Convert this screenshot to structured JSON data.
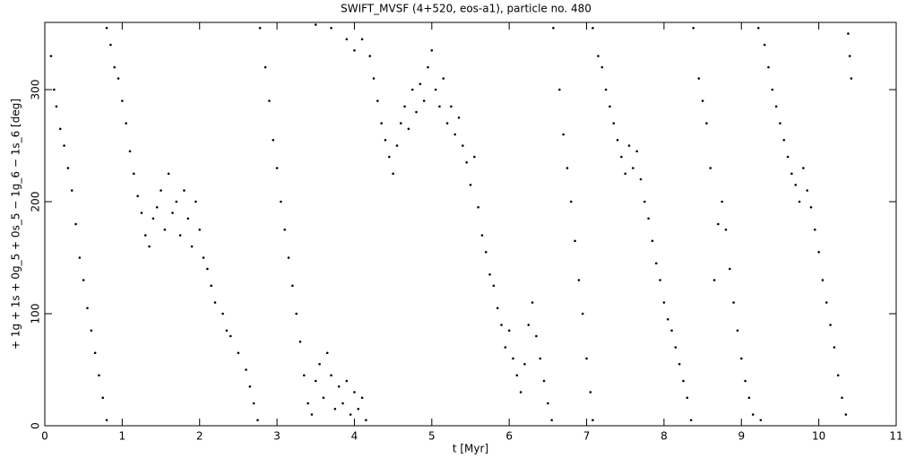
{
  "chart_data": {
    "type": "scatter",
    "title": "SWIFT_MVSF (4+520, eos-a1), particle no. 480",
    "x_label": "t [Myr]",
    "y_label": "+ 1g + 1s + 0g_5 + 0s_5 − 1g_6 − 1s_6 [deg]",
    "color": "#000000",
    "xlim": [
      0,
      11
    ],
    "xticks": [
      0,
      1,
      2,
      3,
      4,
      5,
      6,
      7,
      8,
      9,
      10,
      11
    ],
    "ylim": [
      0,
      360
    ],
    "yticks": [
      0,
      100,
      200,
      300
    ],
    "x": [
      0.08,
      0.12,
      0.15,
      0.2,
      0.25,
      0.3,
      0.35,
      0.4,
      0.45,
      0.5,
      0.55,
      0.6,
      0.65,
      0.7,
      0.75,
      0.8,
      0.8,
      0.85,
      0.9,
      0.95,
      1.0,
      1.05,
      1.1,
      1.15,
      1.2,
      1.25,
      1.3,
      1.35,
      1.4,
      1.45,
      1.5,
      1.55,
      1.6,
      1.65,
      1.7,
      1.75,
      1.8,
      1.85,
      1.9,
      1.95,
      2.0,
      2.05,
      2.1,
      2.15,
      2.2,
      2.3,
      2.35,
      2.4,
      2.5,
      2.6,
      2.65,
      2.7,
      2.75,
      2.78,
      2.85,
      2.9,
      2.95,
      3.0,
      3.05,
      3.1,
      3.15,
      3.2,
      3.25,
      3.3,
      3.35,
      3.4,
      3.45,
      3.5,
      3.55,
      3.6,
      3.65,
      3.7,
      3.75,
      3.8,
      3.85,
      3.9,
      3.95,
      4.0,
      4.05,
      4.1,
      4.15,
      3.5,
      3.7,
      3.9,
      4.0,
      4.1,
      4.2,
      4.25,
      4.3,
      4.35,
      4.4,
      4.45,
      4.5,
      4.55,
      4.6,
      4.65,
      4.7,
      4.75,
      4.8,
      4.85,
      4.9,
      4.95,
      5.0,
      5.05,
      5.1,
      5.15,
      5.2,
      5.25,
      5.3,
      5.35,
      5.4,
      5.45,
      5.5,
      5.55,
      5.6,
      5.65,
      5.7,
      5.75,
      5.8,
      5.85,
      5.9,
      5.95,
      6.0,
      6.05,
      6.1,
      6.15,
      6.2,
      6.25,
      6.3,
      6.35,
      6.4,
      6.45,
      6.5,
      6.55,
      6.57,
      6.65,
      6.7,
      6.75,
      6.8,
      6.85,
      6.9,
      6.95,
      7.0,
      7.05,
      7.08,
      7.08,
      7.15,
      7.2,
      7.25,
      7.3,
      7.35,
      7.4,
      7.45,
      7.5,
      7.55,
      7.6,
      7.65,
      7.7,
      7.75,
      7.8,
      7.85,
      7.9,
      7.95,
      8.0,
      8.05,
      8.1,
      8.15,
      8.2,
      8.25,
      8.3,
      8.35,
      8.38,
      8.45,
      8.5,
      8.55,
      8.6,
      8.65,
      8.7,
      8.75,
      8.8,
      8.85,
      8.9,
      8.95,
      9.0,
      9.05,
      9.1,
      9.15,
      9.25,
      9.22,
      9.3,
      9.35,
      9.4,
      9.45,
      9.5,
      9.55,
      9.6,
      9.65,
      9.7,
      9.75,
      9.8,
      9.85,
      9.9,
      9.95,
      10.0,
      10.05,
      10.1,
      10.15,
      10.2,
      10.25,
      10.3,
      10.35,
      10.38,
      10.4,
      10.42
    ],
    "values": [
      330,
      300,
      285,
      265,
      250,
      230,
      210,
      180,
      150,
      130,
      105,
      85,
      65,
      45,
      25,
      5,
      355,
      340,
      320,
      310,
      290,
      270,
      245,
      225,
      205,
      190,
      170,
      160,
      185,
      195,
      210,
      175,
      225,
      190,
      200,
      170,
      210,
      185,
      160,
      200,
      175,
      150,
      140,
      125,
      110,
      100,
      85,
      80,
      65,
      50,
      35,
      20,
      5,
      355,
      320,
      290,
      255,
      230,
      200,
      175,
      150,
      125,
      100,
      75,
      45,
      20,
      10,
      40,
      55,
      25,
      65,
      45,
      15,
      35,
      20,
      40,
      10,
      30,
      15,
      25,
      5,
      358,
      355,
      345,
      335,
      345,
      330,
      310,
      290,
      270,
      255,
      240,
      225,
      250,
      270,
      285,
      265,
      300,
      280,
      305,
      290,
      320,
      335,
      300,
      285,
      310,
      270,
      285,
      260,
      275,
      250,
      235,
      215,
      240,
      195,
      170,
      155,
      135,
      125,
      105,
      90,
      70,
      85,
      60,
      45,
      30,
      55,
      90,
      110,
      80,
      60,
      40,
      20,
      5,
      355,
      300,
      260,
      230,
      200,
      165,
      130,
      100,
      60,
      30,
      5,
      355,
      330,
      320,
      300,
      285,
      270,
      255,
      240,
      225,
      250,
      230,
      245,
      220,
      200,
      185,
      165,
      145,
      130,
      110,
      95,
      85,
      70,
      55,
      40,
      25,
      5,
      355,
      310,
      290,
      270,
      230,
      130,
      180,
      200,
      175,
      140,
      110,
      85,
      60,
      40,
      25,
      10,
      5,
      355,
      340,
      320,
      300,
      285,
      270,
      255,
      240,
      225,
      215,
      200,
      230,
      210,
      195,
      175,
      155,
      130,
      110,
      90,
      70,
      45,
      25,
      10,
      350,
      330,
      310
    ]
  }
}
